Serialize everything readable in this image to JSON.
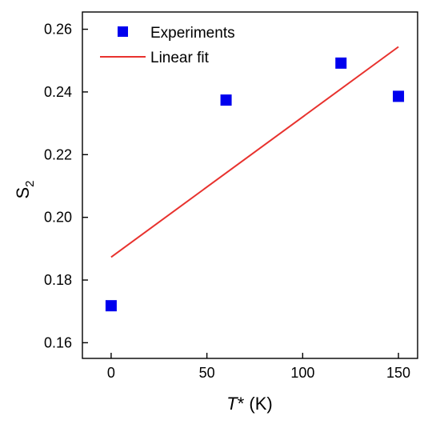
{
  "chart_data": {
    "type": "scatter",
    "xlabel": {
      "italic": "T",
      "rest": "* (K)"
    },
    "ylabel": {
      "base": "S",
      "sub": "2"
    },
    "xlim": [
      -15,
      160
    ],
    "ylim": [
      0.155,
      0.2655
    ],
    "xticks": [
      0,
      50,
      100,
      150
    ],
    "yticks": [
      0.16,
      0.18,
      0.2,
      0.22,
      0.24,
      0.26
    ],
    "xtick_labels": [
      "0",
      "50",
      "100",
      "150"
    ],
    "ytick_labels": [
      "0.16",
      "0.18",
      "0.20",
      "0.22",
      "0.24",
      "0.26"
    ],
    "grid": false,
    "legend_position": "top-left",
    "series": [
      {
        "name": "Experiments",
        "kind": "scatter",
        "marker": "square",
        "color": "#0000ee",
        "x": [
          0,
          60,
          120,
          150
        ],
        "y": [
          0.1718,
          0.2374,
          0.2492,
          0.2386
        ]
      },
      {
        "name": "Linear fit",
        "kind": "line",
        "color": "#e8322e",
        "x": [
          0,
          150
        ],
        "y": [
          0.1873,
          0.2544
        ]
      }
    ]
  }
}
